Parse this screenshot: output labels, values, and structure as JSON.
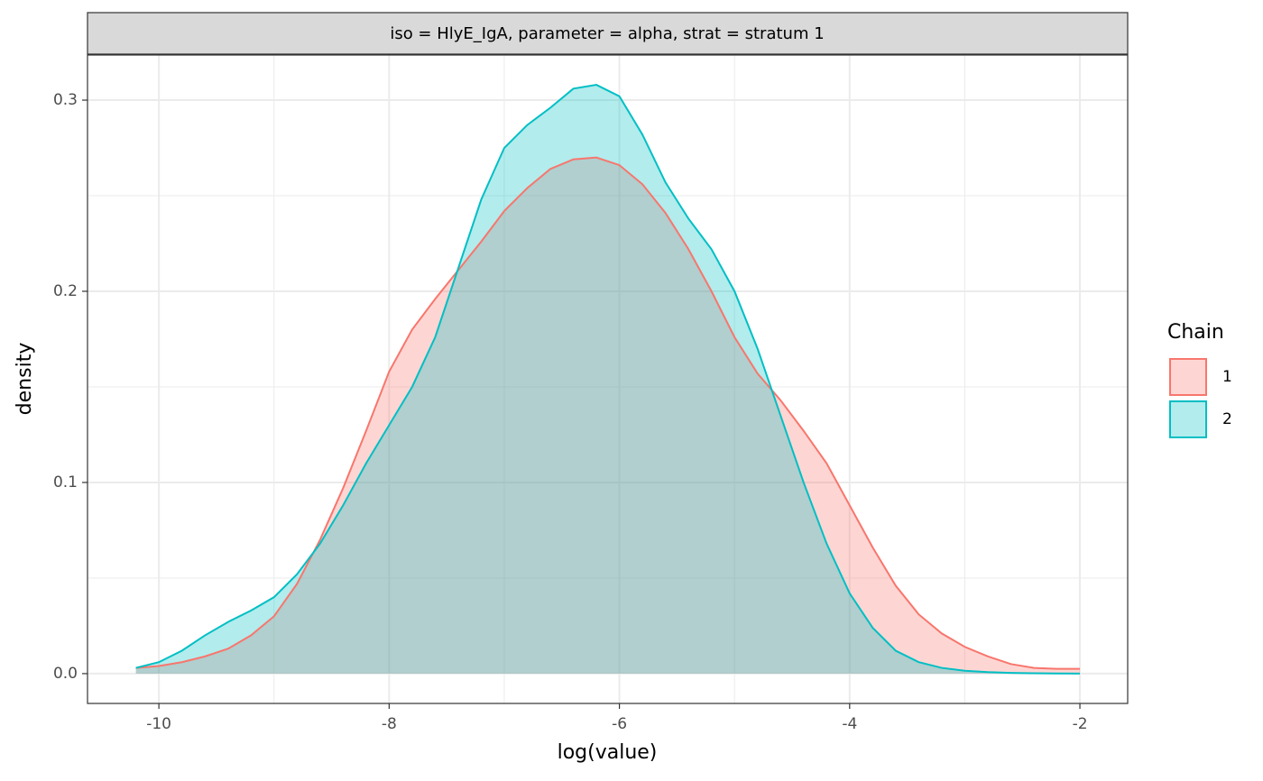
{
  "chart_data": {
    "type": "density",
    "strip_label": "iso = HlyE_IgA, parameter = alpha, strat = stratum 1",
    "xlabel": "log(value)",
    "ylabel": "density",
    "legend_title": "Chain",
    "legend_position": "right",
    "grid": true,
    "xlim": [
      -10.62,
      -1.585
    ],
    "ylim": [
      -0.0156,
      0.3236
    ],
    "xticks": [
      -10,
      -8,
      -6,
      -4,
      -2
    ],
    "yticks": [
      {
        "value": 0,
        "label": "0.0"
      },
      0.1,
      0.2,
      0.3
    ],
    "x": [
      -10.2,
      -10.0,
      -9.8,
      -9.6,
      -9.4,
      -9.2,
      -9.0,
      -8.8,
      -8.6,
      -8.4,
      -8.2,
      -8.0,
      -7.8,
      -7.6,
      -7.4,
      -7.2,
      -7.0,
      -6.8,
      -6.6,
      -6.4,
      -6.2,
      -6.0,
      -5.8,
      -5.6,
      -5.4,
      -5.2,
      -5.0,
      -4.8,
      -4.6,
      -4.4,
      -4.2,
      -4.0,
      -3.8,
      -3.6,
      -3.4,
      -3.2,
      -3.0,
      -2.8,
      -2.6,
      -2.4,
      -2.2,
      -2.0
    ],
    "series": [
      {
        "name": "1",
        "color": "#F8766D",
        "values": [
          0.003,
          0.004,
          0.006,
          0.009,
          0.013,
          0.02,
          0.03,
          0.047,
          0.07,
          0.097,
          0.127,
          0.158,
          0.18,
          0.196,
          0.211,
          0.226,
          0.242,
          0.254,
          0.264,
          0.269,
          0.27,
          0.266,
          0.256,
          0.241,
          0.222,
          0.2,
          0.176,
          0.157,
          0.143,
          0.127,
          0.11,
          0.088,
          0.066,
          0.046,
          0.031,
          0.021,
          0.014,
          0.009,
          0.005,
          0.003,
          0.0025,
          0.0025
        ]
      },
      {
        "name": "2",
        "color": "#00BFC4",
        "values": [
          0.003,
          0.006,
          0.012,
          0.02,
          0.027,
          0.033,
          0.04,
          0.052,
          0.068,
          0.088,
          0.11,
          0.13,
          0.15,
          0.176,
          0.212,
          0.248,
          0.275,
          0.287,
          0.296,
          0.306,
          0.308,
          0.302,
          0.282,
          0.257,
          0.238,
          0.222,
          0.2,
          0.17,
          0.135,
          0.1,
          0.068,
          0.042,
          0.024,
          0.012,
          0.006,
          0.003,
          0.0015,
          0.0008,
          0.0004,
          0.0002,
          0.0001,
          0.0
        ]
      }
    ]
  }
}
